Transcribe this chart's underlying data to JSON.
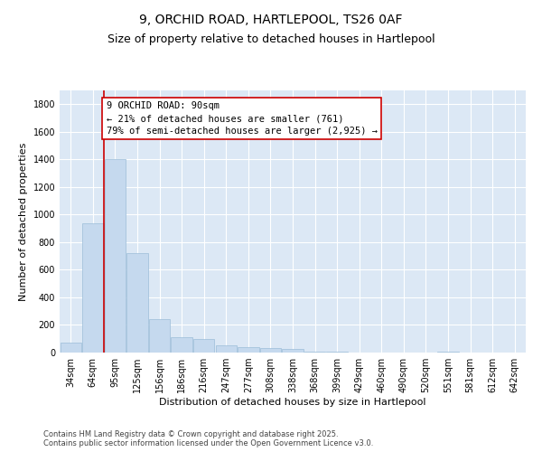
{
  "title_line1": "9, ORCHID ROAD, HARTLEPOOL, TS26 0AF",
  "title_line2": "Size of property relative to detached houses in Hartlepool",
  "xlabel": "Distribution of detached houses by size in Hartlepool",
  "ylabel": "Number of detached properties",
  "categories": [
    "34sqm",
    "64sqm",
    "95sqm",
    "125sqm",
    "156sqm",
    "186sqm",
    "216sqm",
    "247sqm",
    "277sqm",
    "308sqm",
    "338sqm",
    "368sqm",
    "399sqm",
    "429sqm",
    "460sqm",
    "490sqm",
    "520sqm",
    "551sqm",
    "581sqm",
    "612sqm",
    "642sqm"
  ],
  "values": [
    70,
    940,
    1400,
    720,
    240,
    110,
    100,
    50,
    42,
    30,
    25,
    5,
    5,
    0,
    0,
    0,
    0,
    5,
    0,
    0,
    0
  ],
  "bar_color": "#c5d9ee",
  "bar_edge_color": "#9bbdd8",
  "vline_x_index": 1.5,
  "vline_color": "#cc0000",
  "annotation_text": "9 ORCHID ROAD: 90sqm\n← 21% of detached houses are smaller (761)\n79% of semi-detached houses are larger (2,925) →",
  "annotation_box_edgecolor": "#cc0000",
  "ylim": [
    0,
    1900
  ],
  "yticks": [
    0,
    200,
    400,
    600,
    800,
    1000,
    1200,
    1400,
    1600,
    1800
  ],
  "plot_bgcolor": "#dce8f5",
  "footer_text": "Contains HM Land Registry data © Crown copyright and database right 2025.\nContains public sector information licensed under the Open Government Licence v3.0.",
  "title_fontsize": 10,
  "subtitle_fontsize": 9,
  "axis_label_fontsize": 8,
  "tick_fontsize": 7,
  "annotation_fontsize": 7.5,
  "footer_fontsize": 6
}
